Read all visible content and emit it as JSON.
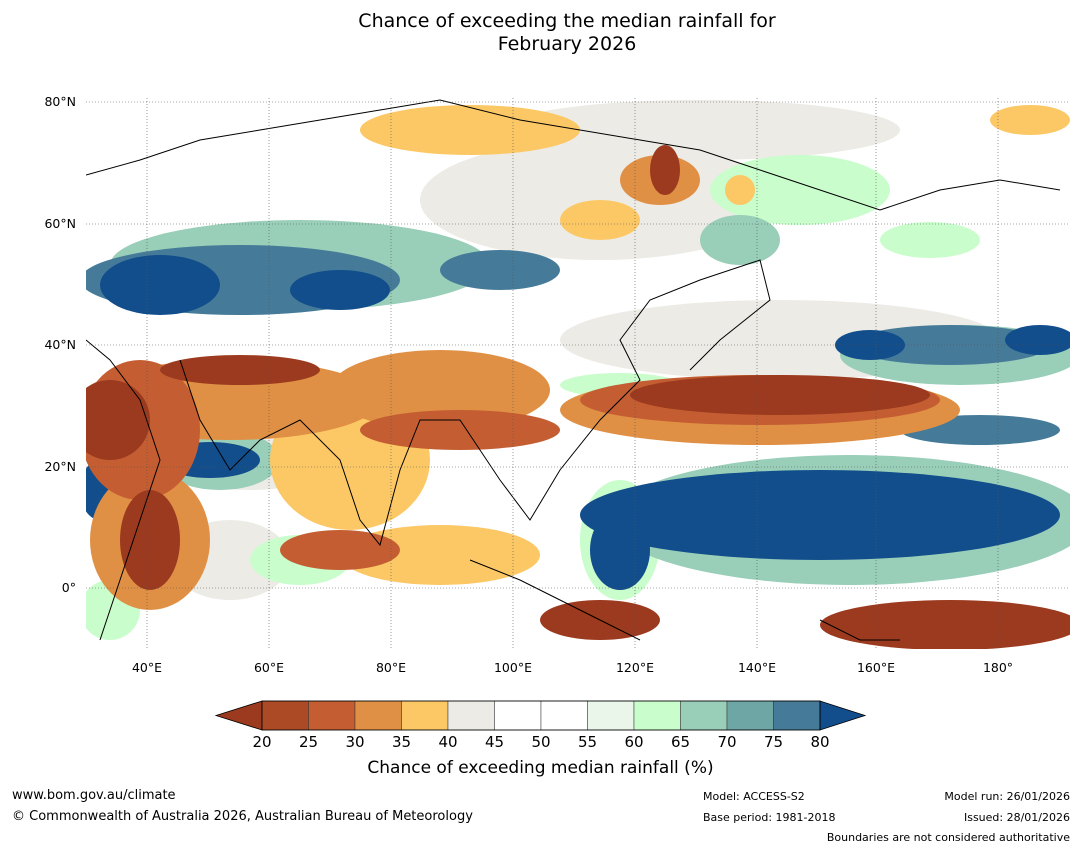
{
  "title": {
    "line1": "Chance of exceeding the median rainfall for",
    "line2": "February 2026"
  },
  "map": {
    "lat_labels": [
      "80°N",
      "60°N",
      "40°N",
      "20°N",
      "0°"
    ],
    "lon_labels": [
      "40°E",
      "60°E",
      "80°E",
      "100°E",
      "120°E",
      "140°E",
      "160°E",
      "180°"
    ],
    "extent": {
      "lon_min": 30,
      "lon_max": 192,
      "lat_min": -10,
      "lat_max": 81
    }
  },
  "colorbar": {
    "title": "Chance of exceeding median rainfall (%)",
    "ticks": [
      "20",
      "25",
      "30",
      "35",
      "40",
      "45",
      "50",
      "55",
      "60",
      "65",
      "70",
      "75",
      "80"
    ],
    "colors": [
      "#9b3a1e",
      "#ad4a26",
      "#c45e32",
      "#e09045",
      "#fcc866",
      "#ecebe6",
      "#ffffff",
      "#ffffff",
      "#eaf6ea",
      "#c9fdcc",
      "#99ceb8",
      "#6ea5a5",
      "#457b98",
      "#124d8c"
    ]
  },
  "footer": {
    "website": "www.bom.gov.au/climate",
    "copyright": "© Commonwealth of Australia 2026, Australian Bureau of Meteorology",
    "model": "Model: ACCESS-S2",
    "base_period": "Base period: 1981-2018",
    "model_run": "Model run: 26/01/2026",
    "issued": "Issued: 28/01/2026",
    "boundaries": "Boundaries are not considered authoritative"
  }
}
